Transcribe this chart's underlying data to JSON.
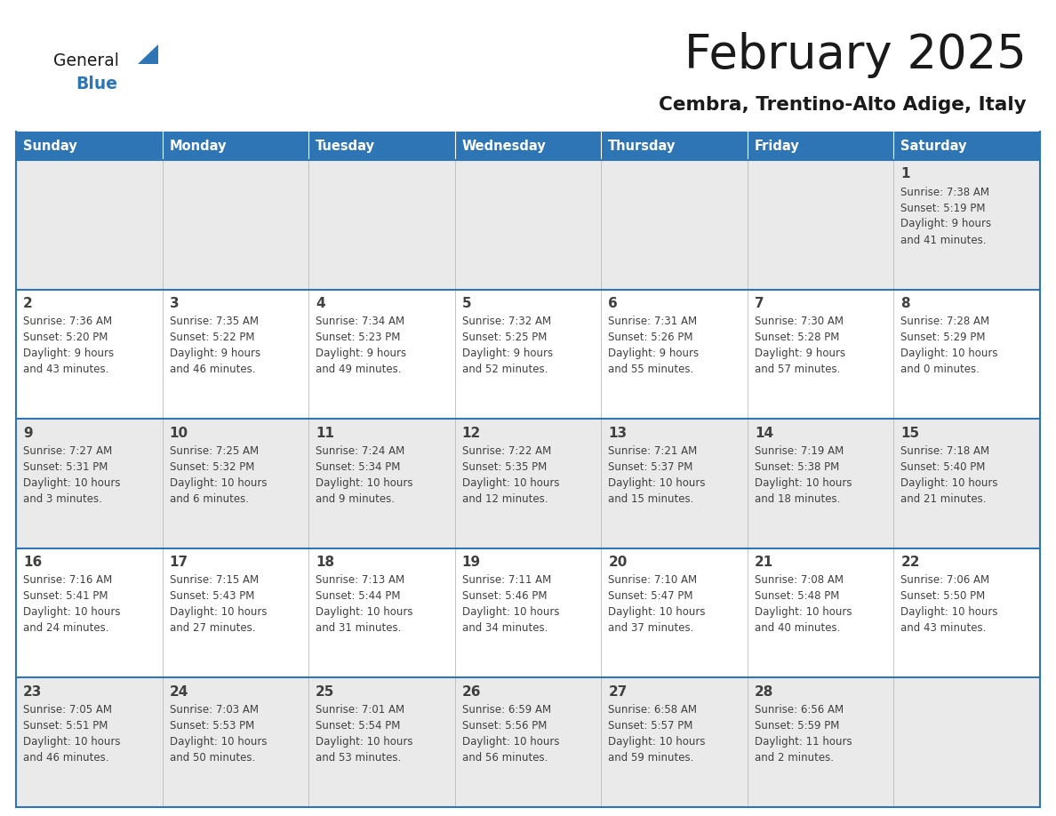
{
  "title": "February 2025",
  "subtitle": "Cembra, Trentino-Alto Adige, Italy",
  "days_of_week": [
    "Sunday",
    "Monday",
    "Tuesday",
    "Wednesday",
    "Thursday",
    "Friday",
    "Saturday"
  ],
  "header_bg": "#2E75B6",
  "header_text": "#FFFFFF",
  "row_bg_odd": "#EAEAEA",
  "row_bg_even": "#FFFFFF",
  "border_color": "#2E75B6",
  "day_number_color": "#404040",
  "cell_text_color": "#404040",
  "logo_general_color": "#1A1A1A",
  "logo_blue_color": "#2E75B6",
  "title_color": "#1A1A1A",
  "subtitle_color": "#1A1A1A",
  "calendar_data": [
    [
      null,
      null,
      null,
      null,
      null,
      null,
      {
        "day": 1,
        "sunrise": "7:38 AM",
        "sunset": "5:19 PM",
        "daylight": "9 hours and 41 minutes."
      }
    ],
    [
      {
        "day": 2,
        "sunrise": "7:36 AM",
        "sunset": "5:20 PM",
        "daylight": "9 hours and 43 minutes."
      },
      {
        "day": 3,
        "sunrise": "7:35 AM",
        "sunset": "5:22 PM",
        "daylight": "9 hours and 46 minutes."
      },
      {
        "day": 4,
        "sunrise": "7:34 AM",
        "sunset": "5:23 PM",
        "daylight": "9 hours and 49 minutes."
      },
      {
        "day": 5,
        "sunrise": "7:32 AM",
        "sunset": "5:25 PM",
        "daylight": "9 hours and 52 minutes."
      },
      {
        "day": 6,
        "sunrise": "7:31 AM",
        "sunset": "5:26 PM",
        "daylight": "9 hours and 55 minutes."
      },
      {
        "day": 7,
        "sunrise": "7:30 AM",
        "sunset": "5:28 PM",
        "daylight": "9 hours and 57 minutes."
      },
      {
        "day": 8,
        "sunrise": "7:28 AM",
        "sunset": "5:29 PM",
        "daylight": "10 hours and 0 minutes."
      }
    ],
    [
      {
        "day": 9,
        "sunrise": "7:27 AM",
        "sunset": "5:31 PM",
        "daylight": "10 hours and 3 minutes."
      },
      {
        "day": 10,
        "sunrise": "7:25 AM",
        "sunset": "5:32 PM",
        "daylight": "10 hours and 6 minutes."
      },
      {
        "day": 11,
        "sunrise": "7:24 AM",
        "sunset": "5:34 PM",
        "daylight": "10 hours and 9 minutes."
      },
      {
        "day": 12,
        "sunrise": "7:22 AM",
        "sunset": "5:35 PM",
        "daylight": "10 hours and 12 minutes."
      },
      {
        "day": 13,
        "sunrise": "7:21 AM",
        "sunset": "5:37 PM",
        "daylight": "10 hours and 15 minutes."
      },
      {
        "day": 14,
        "sunrise": "7:19 AM",
        "sunset": "5:38 PM",
        "daylight": "10 hours and 18 minutes."
      },
      {
        "day": 15,
        "sunrise": "7:18 AM",
        "sunset": "5:40 PM",
        "daylight": "10 hours and 21 minutes."
      }
    ],
    [
      {
        "day": 16,
        "sunrise": "7:16 AM",
        "sunset": "5:41 PM",
        "daylight": "10 hours and 24 minutes."
      },
      {
        "day": 17,
        "sunrise": "7:15 AM",
        "sunset": "5:43 PM",
        "daylight": "10 hours and 27 minutes."
      },
      {
        "day": 18,
        "sunrise": "7:13 AM",
        "sunset": "5:44 PM",
        "daylight": "10 hours and 31 minutes."
      },
      {
        "day": 19,
        "sunrise": "7:11 AM",
        "sunset": "5:46 PM",
        "daylight": "10 hours and 34 minutes."
      },
      {
        "day": 20,
        "sunrise": "7:10 AM",
        "sunset": "5:47 PM",
        "daylight": "10 hours and 37 minutes."
      },
      {
        "day": 21,
        "sunrise": "7:08 AM",
        "sunset": "5:48 PM",
        "daylight": "10 hours and 40 minutes."
      },
      {
        "day": 22,
        "sunrise": "7:06 AM",
        "sunset": "5:50 PM",
        "daylight": "10 hours and 43 minutes."
      }
    ],
    [
      {
        "day": 23,
        "sunrise": "7:05 AM",
        "sunset": "5:51 PM",
        "daylight": "10 hours and 46 minutes."
      },
      {
        "day": 24,
        "sunrise": "7:03 AM",
        "sunset": "5:53 PM",
        "daylight": "10 hours and 50 minutes."
      },
      {
        "day": 25,
        "sunrise": "7:01 AM",
        "sunset": "5:54 PM",
        "daylight": "10 hours and 53 minutes."
      },
      {
        "day": 26,
        "sunrise": "6:59 AM",
        "sunset": "5:56 PM",
        "daylight": "10 hours and 56 minutes."
      },
      {
        "day": 27,
        "sunrise": "6:58 AM",
        "sunset": "5:57 PM",
        "daylight": "10 hours and 59 minutes."
      },
      {
        "day": 28,
        "sunrise": "6:56 AM",
        "sunset": "5:59 PM",
        "daylight": "11 hours and 2 minutes."
      },
      null
    ]
  ]
}
